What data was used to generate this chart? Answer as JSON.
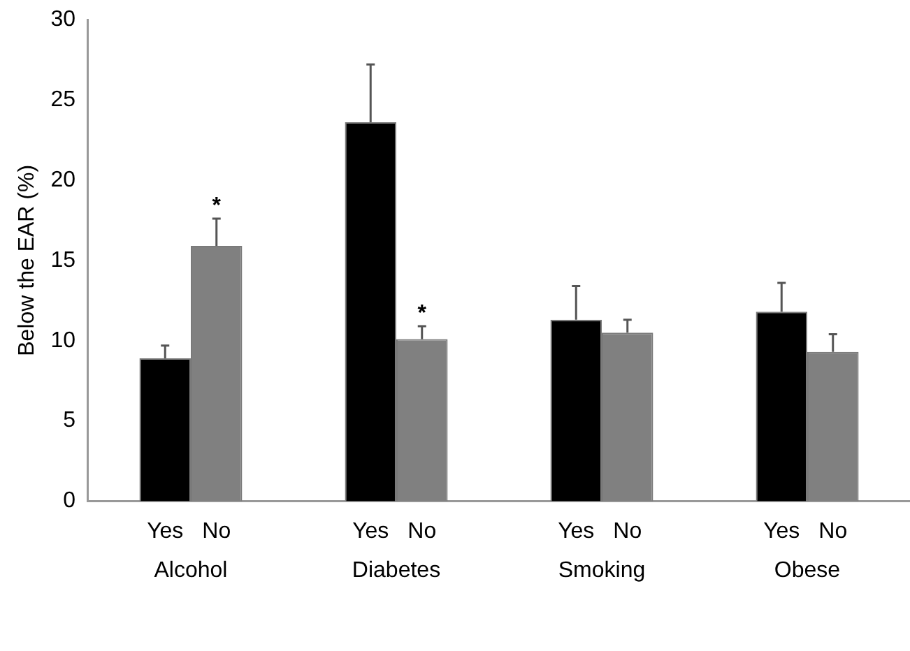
{
  "chart_data": {
    "type": "bar",
    "ylabel": "Below the EAR (%)",
    "categories": [
      "Alcohol",
      "Diabetes",
      "Smoking",
      "Obese"
    ],
    "series": [
      {
        "name": "Yes",
        "color": "#000000",
        "values": [
          8.9,
          23.6,
          11.3,
          11.8
        ],
        "errors": [
          [
            8.9,
            9.7
          ],
          [
            23.6,
            27.2
          ],
          [
            11.3,
            13.4
          ],
          [
            11.8,
            13.6
          ]
        ]
      },
      {
        "name": "No",
        "color": "#808080",
        "values": [
          15.9,
          10.1,
          10.5,
          9.3
        ],
        "errors": [
          [
            15.9,
            17.6
          ],
          [
            10.1,
            10.9
          ],
          [
            10.5,
            11.3
          ],
          [
            9.3,
            10.4
          ]
        ]
      }
    ],
    "ylim": [
      0,
      30
    ],
    "yticks": [
      0,
      5,
      10,
      15,
      20,
      25,
      30
    ],
    "grid": false,
    "legend": false,
    "annotations": [
      "*",
      "*"
    ]
  }
}
